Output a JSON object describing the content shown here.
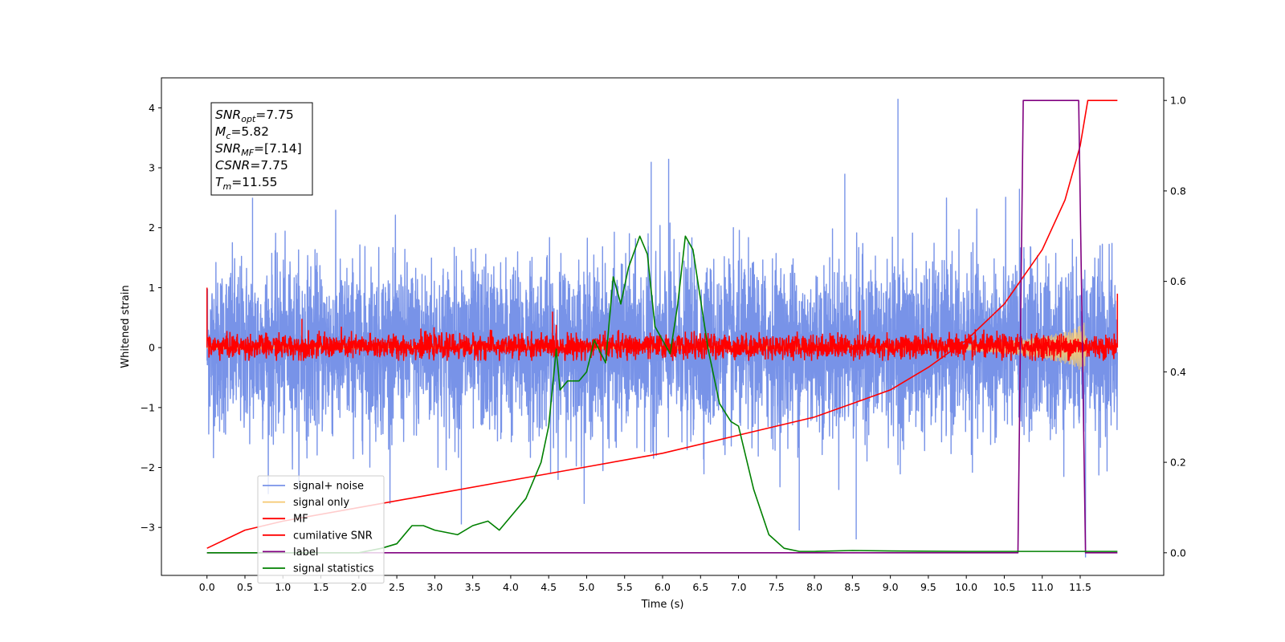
{
  "chart_data": {
    "type": "line",
    "title": "",
    "xlabel": "Time (s)",
    "ylabel": "Whitened strain",
    "y2label": "",
    "xlim": [
      -0.6,
      12.6
    ],
    "ylim": [
      -3.8,
      4.5
    ],
    "y2lim": [
      -0.05,
      1.05
    ],
    "x_ticks": [
      0.0,
      0.5,
      1.0,
      1.5,
      2.0,
      2.5,
      3.0,
      3.5,
      4.0,
      4.5,
      5.0,
      5.5,
      6.0,
      6.5,
      7.0,
      7.5,
      8.0,
      8.5,
      9.0,
      9.5,
      10.0,
      10.5,
      11.0,
      11.5
    ],
    "x_tick_labels": [
      "0.0",
      "0.5",
      "1.0",
      "1.5",
      "2.0",
      "2.5",
      "3.0",
      "3.5",
      "4.0",
      "4.5",
      "5.0",
      "5.5",
      "6.0",
      "6.5",
      "7.0",
      "7.5",
      "8.0",
      "8.5",
      "9.0",
      "9.5",
      "10.0",
      "10.5",
      "11.0",
      "11.5"
    ],
    "y_ticks": [
      -3,
      -2,
      -1,
      0,
      1,
      2,
      3,
      4
    ],
    "y_tick_labels": [
      "−3",
      "−2",
      "−1",
      "0",
      "1",
      "2",
      "3",
      "4"
    ],
    "y2_ticks": [
      0.0,
      0.2,
      0.4,
      0.6,
      0.8,
      1.0
    ],
    "y2_tick_labels": [
      "0.0",
      "0.2",
      "0.4",
      "0.6",
      "0.8",
      "1.0"
    ],
    "grid": false,
    "legend_position": "lower-left",
    "annotation_box": [
      {
        "sym": "SNR",
        "sub": "opt",
        "val": "=7.75"
      },
      {
        "sym": "M",
        "sub": "c",
        "val": "=5.82"
      },
      {
        "sym": "SNR",
        "sub": "MF",
        "val": "=[7.14]"
      },
      {
        "sym": "CSNR",
        "sub": "",
        "val": "=7.75"
      },
      {
        "sym": "T",
        "sub": "m",
        "val": "=11.55"
      }
    ],
    "series": [
      {
        "name": "signal+ noise",
        "axis": "left",
        "color": "#7893e8",
        "kind": "noise",
        "description_stats": {
          "x_range": [
            0.0,
            11.99
          ],
          "typical_band": [
            -1.5,
            1.5
          ],
          "peaks_up": [
            [
              0.6,
              2.5
            ],
            [
              5.85,
              3.1
            ],
            [
              6.08,
              3.15
            ],
            [
              9.1,
              4.15
            ],
            [
              8.4,
              2.9
            ],
            [
              10.7,
              2.65
            ]
          ],
          "peaks_down": [
            [
              3.35,
              -2.95
            ],
            [
              8.55,
              -3.2
            ],
            [
              7.8,
              -3.05
            ],
            [
              11.57,
              -3.5
            ]
          ]
        }
      },
      {
        "name": "signal only",
        "axis": "left",
        "color": "#f5c870",
        "kind": "chirp",
        "envelope_points": [
          [
            0.0,
            0.02
          ],
          [
            9.0,
            0.03
          ],
          [
            10.0,
            0.05
          ],
          [
            10.5,
            0.1
          ],
          [
            11.0,
            0.18
          ],
          [
            11.4,
            0.3
          ],
          [
            11.55,
            0.42
          ],
          [
            11.6,
            0.0
          ],
          [
            11.99,
            0.0
          ]
        ]
      },
      {
        "name": "MF",
        "axis": "left",
        "color": "#ff0000",
        "kind": "mf",
        "edges": [
          [
            0.0,
            1.0
          ],
          [
            11.99,
            0.9
          ]
        ],
        "typical_band": [
          -0.2,
          0.25
        ],
        "peaks_up": [
          [
            1.25,
            0.48
          ],
          [
            4.55,
            0.6
          ],
          [
            8.6,
            0.62
          ]
        ]
      },
      {
        "name": "cumilative SNR",
        "axis": "right",
        "color": "#ff0000",
        "x": [
          0.0,
          0.5,
          1.0,
          2.0,
          3.0,
          4.0,
          5.0,
          6.0,
          7.0,
          8.0,
          8.5,
          9.0,
          9.5,
          10.0,
          10.5,
          11.0,
          11.3,
          11.5,
          11.6,
          11.99
        ],
        "y": [
          0.01,
          0.05,
          0.07,
          0.1,
          0.13,
          0.16,
          0.19,
          0.22,
          0.26,
          0.3,
          0.33,
          0.36,
          0.41,
          0.47,
          0.55,
          0.67,
          0.78,
          0.9,
          1.0,
          1.0
        ]
      },
      {
        "name": "label",
        "axis": "right",
        "color": "#800080",
        "x": [
          0.0,
          10.68,
          10.75,
          11.48,
          11.57,
          11.99
        ],
        "y": [
          0.0,
          0.0,
          1.0,
          1.0,
          0.0,
          0.0
        ]
      },
      {
        "name": "signal statistics",
        "axis": "right",
        "color": "#008000",
        "x": [
          0.0,
          1.0,
          2.0,
          2.3,
          2.5,
          2.7,
          2.85,
          3.0,
          3.3,
          3.5,
          3.7,
          3.85,
          4.0,
          4.2,
          4.4,
          4.5,
          4.6,
          4.65,
          4.75,
          4.9,
          5.0,
          5.1,
          5.25,
          5.35,
          5.45,
          5.55,
          5.7,
          5.8,
          5.9,
          6.0,
          6.1,
          6.2,
          6.3,
          6.4,
          6.5,
          6.6,
          6.75,
          6.9,
          7.0,
          7.2,
          7.4,
          7.6,
          7.8,
          8.0,
          8.5,
          9.0,
          10.0,
          11.0,
          11.99
        ],
        "y": [
          0.0,
          0.0,
          0.0,
          0.01,
          0.02,
          0.06,
          0.06,
          0.05,
          0.04,
          0.06,
          0.07,
          0.05,
          0.08,
          0.12,
          0.2,
          0.28,
          0.45,
          0.36,
          0.38,
          0.38,
          0.4,
          0.47,
          0.42,
          0.61,
          0.55,
          0.63,
          0.7,
          0.66,
          0.5,
          0.47,
          0.44,
          0.55,
          0.7,
          0.67,
          0.56,
          0.45,
          0.33,
          0.29,
          0.28,
          0.14,
          0.04,
          0.01,
          0.003,
          0.003,
          0.005,
          0.004,
          0.003,
          0.003,
          0.003
        ]
      }
    ]
  }
}
